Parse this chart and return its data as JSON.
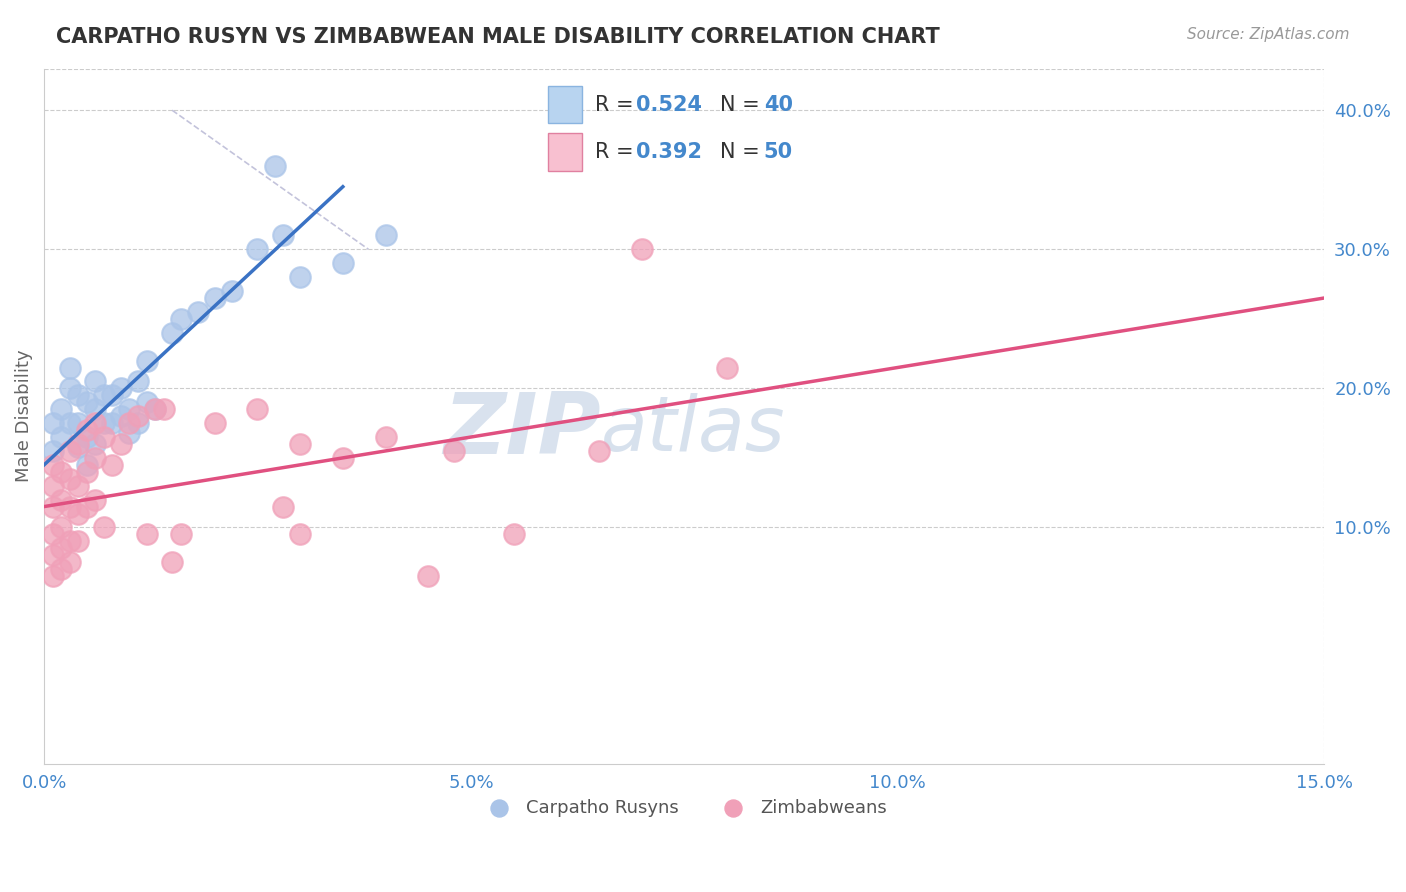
{
  "title": "CARPATHO RUSYN VS ZIMBABWEAN MALE DISABILITY CORRELATION CHART",
  "source": "Source: ZipAtlas.com",
  "ylabel": "Male Disability",
  "xlim": [
    0.0,
    0.15
  ],
  "ylim": [
    -0.07,
    0.43
  ],
  "xticks": [
    0.0,
    0.05,
    0.1,
    0.15
  ],
  "xtick_labels": [
    "0.0%",
    "5.0%",
    "10.0%",
    "15.0%"
  ],
  "yticks": [
    0.1,
    0.2,
    0.3,
    0.4
  ],
  "ytick_labels": [
    "10.0%",
    "20.0%",
    "30.0%",
    "40.0%"
  ],
  "R_blue": 0.524,
  "N_blue": 40,
  "R_pink": 0.392,
  "N_pink": 50,
  "blue_color": "#aac4e8",
  "pink_color": "#f0a0b8",
  "blue_line_color": "#3a72c4",
  "pink_line_color": "#e05080",
  "legend_blue_box": "#b8d4f0",
  "legend_pink_box": "#f8c0d0",
  "watermark_zip": "ZIP",
  "watermark_atlas": "atlas",
  "watermark_color_zip": "#c8d8ee",
  "watermark_color_atlas": "#b0c8e0",
  "background_color": "#ffffff",
  "grid_color": "#cccccc",
  "title_color": "#333333",
  "legend_text_color": "#4488cc",
  "legend_label_color": "#333333",
  "ytick_color": "#4488cc",
  "xtick_color": "#4488cc",
  "blue_scatter": [
    [
      0.001,
      0.155
    ],
    [
      0.001,
      0.175
    ],
    [
      0.002,
      0.165
    ],
    [
      0.002,
      0.185
    ],
    [
      0.003,
      0.2
    ],
    [
      0.003,
      0.215
    ],
    [
      0.003,
      0.175
    ],
    [
      0.004,
      0.195
    ],
    [
      0.004,
      0.175
    ],
    [
      0.004,
      0.158
    ],
    [
      0.005,
      0.19
    ],
    [
      0.005,
      0.165
    ],
    [
      0.005,
      0.145
    ],
    [
      0.006,
      0.205
    ],
    [
      0.006,
      0.185
    ],
    [
      0.006,
      0.16
    ],
    [
      0.007,
      0.195
    ],
    [
      0.007,
      0.175
    ],
    [
      0.008,
      0.195
    ],
    [
      0.008,
      0.175
    ],
    [
      0.009,
      0.2
    ],
    [
      0.009,
      0.18
    ],
    [
      0.01,
      0.185
    ],
    [
      0.01,
      0.168
    ],
    [
      0.011,
      0.205
    ],
    [
      0.011,
      0.175
    ],
    [
      0.012,
      0.22
    ],
    [
      0.012,
      0.19
    ],
    [
      0.013,
      0.185
    ],
    [
      0.015,
      0.24
    ],
    [
      0.016,
      0.25
    ],
    [
      0.018,
      0.255
    ],
    [
      0.02,
      0.265
    ],
    [
      0.022,
      0.27
    ],
    [
      0.025,
      0.3
    ],
    [
      0.028,
      0.31
    ],
    [
      0.027,
      0.36
    ],
    [
      0.03,
      0.28
    ],
    [
      0.035,
      0.29
    ],
    [
      0.04,
      0.31
    ]
  ],
  "pink_scatter": [
    [
      0.001,
      0.145
    ],
    [
      0.001,
      0.13
    ],
    [
      0.001,
      0.115
    ],
    [
      0.001,
      0.095
    ],
    [
      0.001,
      0.08
    ],
    [
      0.001,
      0.065
    ],
    [
      0.002,
      0.14
    ],
    [
      0.002,
      0.12
    ],
    [
      0.002,
      0.1
    ],
    [
      0.002,
      0.085
    ],
    [
      0.002,
      0.07
    ],
    [
      0.003,
      0.155
    ],
    [
      0.003,
      0.135
    ],
    [
      0.003,
      0.115
    ],
    [
      0.003,
      0.09
    ],
    [
      0.003,
      0.075
    ],
    [
      0.004,
      0.16
    ],
    [
      0.004,
      0.13
    ],
    [
      0.004,
      0.11
    ],
    [
      0.004,
      0.09
    ],
    [
      0.005,
      0.17
    ],
    [
      0.005,
      0.14
    ],
    [
      0.005,
      0.115
    ],
    [
      0.006,
      0.175
    ],
    [
      0.006,
      0.15
    ],
    [
      0.006,
      0.12
    ],
    [
      0.007,
      0.165
    ],
    [
      0.007,
      0.1
    ],
    [
      0.008,
      0.145
    ],
    [
      0.009,
      0.16
    ],
    [
      0.01,
      0.175
    ],
    [
      0.011,
      0.18
    ],
    [
      0.012,
      0.095
    ],
    [
      0.013,
      0.185
    ],
    [
      0.014,
      0.185
    ],
    [
      0.015,
      0.075
    ],
    [
      0.016,
      0.095
    ],
    [
      0.02,
      0.175
    ],
    [
      0.025,
      0.185
    ],
    [
      0.028,
      0.115
    ],
    [
      0.03,
      0.095
    ],
    [
      0.03,
      0.16
    ],
    [
      0.035,
      0.15
    ],
    [
      0.04,
      0.165
    ],
    [
      0.045,
      0.065
    ],
    [
      0.048,
      0.155
    ],
    [
      0.055,
      0.095
    ],
    [
      0.065,
      0.155
    ],
    [
      0.07,
      0.3
    ],
    [
      0.08,
      0.215
    ]
  ],
  "blue_line": {
    "x0": 0.0,
    "y0": 0.145,
    "x1": 0.035,
    "y1": 0.345
  },
  "pink_line": {
    "x0": 0.0,
    "y0": 0.115,
    "x1": 0.15,
    "y1": 0.265
  },
  "ref_line": {
    "x0": 0.015,
    "y0": 0.4,
    "x1": 0.038,
    "y1": 0.3
  }
}
